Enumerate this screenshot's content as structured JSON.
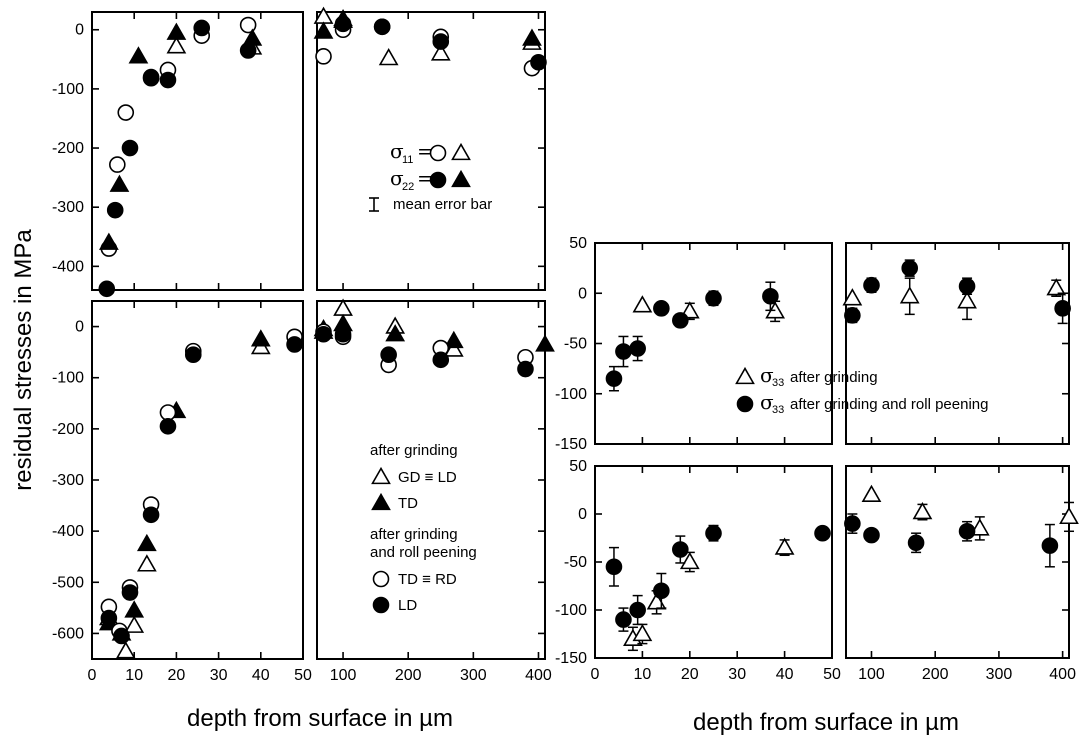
{
  "chart_data": [
    {
      "panel": "left-top",
      "type": "scatter",
      "ylabel": "residual stresses in MPa",
      "ylim": [
        -440,
        30
      ],
      "yticks": [
        0,
        -100,
        -200,
        -300,
        -400
      ],
      "segments": [
        {
          "xlim": [
            0,
            50
          ],
          "xticks": [
            0,
            10,
            20,
            30,
            40,
            50
          ]
        },
        {
          "xlim": [
            60,
            410
          ],
          "xticks": [
            100,
            200,
            300,
            400
          ]
        }
      ],
      "legend": {
        "line1": {
          "label": "σ₁₁ =",
          "sigma": "σ",
          "sub": "11",
          "eq": "="
        },
        "line2": {
          "label": "σ₂₂ =",
          "sigma": "σ",
          "sub": "22",
          "eq": "="
        },
        "error_label": "mean error bar",
        "placement": "right"
      },
      "series": [
        {
          "name": "σ11 open circle",
          "marker": "circle-open",
          "points": [
            [
              4,
              -370
            ],
            [
              6,
              -228
            ],
            [
              8,
              -140
            ],
            [
              18,
              -68
            ],
            [
              14,
              -82
            ],
            [
              26,
              -10
            ],
            [
              37,
              8
            ],
            [
              70,
              -45
            ],
            [
              100,
              0
            ],
            [
              160,
              5
            ],
            [
              250,
              -12
            ],
            [
              390,
              -65
            ]
          ]
        },
        {
          "name": "σ11 open triangle",
          "marker": "triangle-open",
          "points": [
            [
              20,
              -28
            ],
            [
              38,
              -30
            ],
            [
              70,
              22
            ],
            [
              100,
              15
            ],
            [
              170,
              -48
            ],
            [
              250,
              -40
            ],
            [
              390,
              -22
            ]
          ]
        },
        {
          "name": "σ22 filled circle",
          "marker": "circle-filled",
          "points": [
            [
              3.5,
              -438
            ],
            [
              5.5,
              -305
            ],
            [
              9,
              -200
            ],
            [
              14,
              -80
            ],
            [
              18,
              -85
            ],
            [
              26,
              3
            ],
            [
              37,
              -35
            ],
            [
              100,
              10
            ],
            [
              160,
              5
            ],
            [
              250,
              -20
            ],
            [
              400,
              -55
            ]
          ]
        },
        {
          "name": "σ22 filled triangle",
          "marker": "triangle-filled",
          "points": [
            [
              4,
              -360
            ],
            [
              6.5,
              -262
            ],
            [
              11,
              -45
            ],
            [
              20,
              -5
            ],
            [
              38,
              -15
            ],
            [
              70,
              -3
            ],
            [
              100,
              18
            ],
            [
              390,
              -15
            ]
          ]
        }
      ]
    },
    {
      "panel": "left-bottom",
      "type": "scatter",
      "xlabel": "depth from surface in µm",
      "ylim": [
        -650,
        50
      ],
      "yticks": [
        0,
        -100,
        -200,
        -300,
        -400,
        -500,
        -600
      ],
      "segments": [
        {
          "xlim": [
            0,
            50
          ],
          "xticks": [
            0,
            10,
            20,
            30,
            40,
            50
          ]
        },
        {
          "xlim": [
            60,
            410
          ],
          "xticks": [
            100,
            200,
            300,
            400
          ]
        }
      ],
      "legend": {
        "heading1": "after grinding",
        "item1": "GD ≡ LD",
        "item2": "TD",
        "heading2a": "after grinding",
        "heading2b": "and roll peening",
        "item3": "TD ≡ RD",
        "item4": "LD",
        "placement": "right"
      },
      "series": [
        {
          "name": "after grinding GD ≡ LD",
          "marker": "triangle-open",
          "points": [
            [
              4,
              -570
            ],
            [
              8,
              -635
            ],
            [
              10,
              -585
            ],
            [
              13,
              -465
            ],
            [
              40,
              -40
            ],
            [
              70,
              -10
            ],
            [
              100,
              35
            ],
            [
              180,
              0
            ],
            [
              270,
              -45
            ]
          ]
        },
        {
          "name": "after grinding TD",
          "marker": "triangle-filled",
          "points": [
            [
              4,
              -580
            ],
            [
              7,
              -600
            ],
            [
              10,
              -555
            ],
            [
              13,
              -425
            ],
            [
              20,
              -165
            ],
            [
              40,
              -25
            ],
            [
              70,
              -5
            ],
            [
              100,
              5
            ],
            [
              180,
              -15
            ],
            [
              270,
              -28
            ],
            [
              410,
              -35
            ]
          ]
        },
        {
          "name": "after grinding and roll peening TD ≡ RD",
          "marker": "circle-open",
          "points": [
            [
              4,
              -548
            ],
            [
              6.5,
              -595
            ],
            [
              9,
              -510
            ],
            [
              14,
              -348
            ],
            [
              18,
              -168
            ],
            [
              24,
              -48
            ],
            [
              48,
              -20
            ],
            [
              70,
              -10
            ],
            [
              100,
              -20
            ],
            [
              170,
              -75
            ],
            [
              250,
              -42
            ],
            [
              380,
              -60
            ]
          ]
        },
        {
          "name": "after grinding and roll peening LD",
          "marker": "circle-filled",
          "points": [
            [
              4,
              -570
            ],
            [
              7,
              -605
            ],
            [
              9,
              -520
            ],
            [
              14,
              -368
            ],
            [
              18,
              -195
            ],
            [
              24,
              -55
            ],
            [
              48,
              -35
            ],
            [
              70,
              -15
            ],
            [
              100,
              -15
            ],
            [
              170,
              -55
            ],
            [
              250,
              -65
            ],
            [
              380,
              -83
            ]
          ]
        }
      ]
    },
    {
      "panel": "right-top",
      "type": "scatter",
      "ylim": [
        -150,
        50
      ],
      "yticks": [
        50,
        0,
        -50,
        -100,
        -150
      ],
      "segments": [
        {
          "xlim": [
            0,
            50
          ],
          "xticks": [
            0,
            10,
            20,
            30,
            40,
            50
          ]
        },
        {
          "xlim": [
            60,
            410
          ],
          "xticks": [
            100,
            200,
            300,
            400
          ]
        }
      ],
      "legend": {
        "item1": {
          "sigma": "σ",
          "sub": "33",
          "text": "after grinding"
        },
        "item2": {
          "sigma": "σ",
          "sub": "33",
          "text": "after grinding and roll peening"
        },
        "placement": "center"
      },
      "series": [
        {
          "name": "σ33 after grinding",
          "marker": "triangle-open",
          "points": [
            [
              10,
              -12,
              0
            ],
            [
              20,
              -18,
              8
            ],
            [
              38,
              -18,
              10
            ],
            [
              70,
              -5,
              0
            ],
            [
              160,
              -3,
              18
            ],
            [
              250,
              -8,
              18
            ],
            [
              390,
              5,
              8
            ]
          ]
        },
        {
          "name": "σ33 after grinding and roll peening",
          "marker": "circle-filled",
          "points": [
            [
              4,
              -85,
              12
            ],
            [
              6,
              -58,
              15
            ],
            [
              9,
              -55,
              12
            ],
            [
              14,
              -15,
              3
            ],
            [
              18,
              -27,
              6
            ],
            [
              25,
              -5,
              7
            ],
            [
              37,
              -3,
              14
            ],
            [
              70,
              -22,
              7
            ],
            [
              100,
              8,
              7
            ],
            [
              160,
              25,
              8
            ],
            [
              250,
              7,
              8
            ],
            [
              400,
              -15,
              15
            ]
          ]
        }
      ]
    },
    {
      "panel": "right-bottom",
      "type": "scatter",
      "xlabel": "depth from surface in µm",
      "ylim": [
        -150,
        50
      ],
      "yticks": [
        50,
        0,
        -50,
        -100,
        -150
      ],
      "segments": [
        {
          "xlim": [
            0,
            50
          ],
          "xticks": [
            0,
            10,
            20,
            30,
            40,
            50
          ]
        },
        {
          "xlim": [
            60,
            410
          ],
          "xticks": [
            100,
            200,
            300,
            400
          ]
        }
      ],
      "series": [
        {
          "name": "σ33 after grinding",
          "marker": "triangle-open",
          "points": [
            [
              8,
              -130,
              12
            ],
            [
              10,
              -125,
              10
            ],
            [
              13,
              -92,
              12
            ],
            [
              20,
              -50,
              10
            ],
            [
              40,
              -35,
              8
            ],
            [
              100,
              20,
              0
            ],
            [
              180,
              2,
              8
            ],
            [
              270,
              -15,
              12
            ],
            [
              410,
              -3,
              15
            ]
          ]
        },
        {
          "name": "σ33 after grinding and roll peening",
          "marker": "circle-filled",
          "points": [
            [
              4,
              -55,
              20
            ],
            [
              6,
              -110,
              12
            ],
            [
              9,
              -100,
              15
            ],
            [
              14,
              -80,
              18
            ],
            [
              18,
              -37,
              14
            ],
            [
              25,
              -20,
              8
            ],
            [
              48,
              -20,
              0
            ],
            [
              70,
              -10,
              10
            ],
            [
              100,
              -22,
              0
            ],
            [
              170,
              -30,
              10
            ],
            [
              250,
              -18,
              10
            ],
            [
              380,
              -33,
              22
            ]
          ]
        }
      ]
    }
  ]
}
